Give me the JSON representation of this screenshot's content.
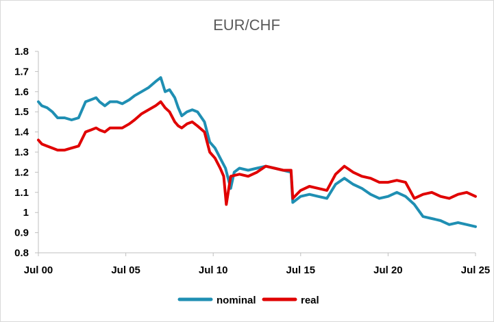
{
  "chart_data": {
    "type": "line",
    "title": "EUR/CHF",
    "xlabel": "",
    "ylabel": "",
    "ylim": [
      0.8,
      1.8
    ],
    "yticks": [
      0.8,
      0.9,
      1,
      1.1,
      1.2,
      1.3,
      1.4,
      1.5,
      1.6,
      1.7,
      1.8
    ],
    "ytick_labels": [
      "0.8",
      "0.9",
      "1",
      "1.1",
      "1.2",
      "1.3",
      "1.4",
      "1.5",
      "1.6",
      "1.7",
      "1.8"
    ],
    "xlim": [
      2000.5,
      2025.5
    ],
    "xticks": [
      2000.5,
      2005.5,
      2010.5,
      2015.5,
      2020.5,
      2025.5
    ],
    "xtick_labels": [
      "Jul 00",
      "Jul 05",
      "Jul 10",
      "Jul 15",
      "Jul 20",
      "Jul 25"
    ],
    "grid": false,
    "legend": "bottom",
    "series": [
      {
        "name": "nominal",
        "color": "#1f8fb3",
        "x": [
          2000.5,
          2000.7,
          2001.0,
          2001.3,
          2001.6,
          2002.0,
          2002.4,
          2002.8,
          2003.2,
          2003.5,
          2003.8,
          2004.0,
          2004.3,
          2004.6,
          2005.0,
          2005.3,
          2005.7,
          2006.0,
          2006.4,
          2006.8,
          2007.2,
          2007.5,
          2007.75,
          2008.0,
          2008.3,
          2008.5,
          2008.7,
          2009.0,
          2009.3,
          2009.6,
          2010.0,
          2010.3,
          2010.6,
          2010.9,
          2011.2,
          2011.5,
          2011.7,
          2012.0,
          2012.5,
          2013.0,
          2013.5,
          2014.0,
          2014.5,
          2014.95,
          2015.05,
          2015.5,
          2016.0,
          2016.5,
          2017.0,
          2017.5,
          2018.0,
          2018.5,
          2019.0,
          2019.5,
          2020.0,
          2020.5,
          2021.0,
          2021.5,
          2022.0,
          2022.5,
          2023.0,
          2023.5,
          2024.0,
          2024.5,
          2025.0,
          2025.5
        ],
        "values": [
          1.55,
          1.53,
          1.52,
          1.5,
          1.47,
          1.47,
          1.46,
          1.47,
          1.55,
          1.56,
          1.57,
          1.55,
          1.53,
          1.55,
          1.55,
          1.54,
          1.56,
          1.58,
          1.6,
          1.62,
          1.65,
          1.67,
          1.6,
          1.61,
          1.57,
          1.52,
          1.48,
          1.5,
          1.51,
          1.5,
          1.45,
          1.35,
          1.32,
          1.27,
          1.22,
          1.12,
          1.2,
          1.22,
          1.21,
          1.22,
          1.23,
          1.22,
          1.21,
          1.2,
          1.05,
          1.08,
          1.09,
          1.08,
          1.07,
          1.14,
          1.17,
          1.14,
          1.12,
          1.09,
          1.07,
          1.08,
          1.1,
          1.08,
          1.04,
          0.98,
          0.97,
          0.96,
          0.94,
          0.95,
          0.94,
          0.93
        ]
      },
      {
        "name": "real",
        "color": "#e00000",
        "x": [
          2000.5,
          2000.7,
          2001.0,
          2001.3,
          2001.6,
          2002.0,
          2002.4,
          2002.8,
          2003.2,
          2003.5,
          2003.8,
          2004.0,
          2004.3,
          2004.6,
          2005.0,
          2005.3,
          2005.7,
          2006.0,
          2006.4,
          2006.8,
          2007.2,
          2007.5,
          2007.75,
          2008.0,
          2008.3,
          2008.5,
          2008.7,
          2009.0,
          2009.3,
          2009.6,
          2010.0,
          2010.3,
          2010.6,
          2010.9,
          2011.1,
          2011.25,
          2011.5,
          2012.0,
          2012.5,
          2013.0,
          2013.5,
          2014.0,
          2014.5,
          2014.95,
          2015.05,
          2015.5,
          2016.0,
          2016.5,
          2017.0,
          2017.5,
          2018.0,
          2018.5,
          2019.0,
          2019.5,
          2020.0,
          2020.5,
          2021.0,
          2021.5,
          2022.0,
          2022.5,
          2023.0,
          2023.5,
          2024.0,
          2024.5,
          2025.0,
          2025.5
        ],
        "values": [
          1.36,
          1.34,
          1.33,
          1.32,
          1.31,
          1.31,
          1.32,
          1.33,
          1.4,
          1.41,
          1.42,
          1.41,
          1.4,
          1.42,
          1.42,
          1.42,
          1.44,
          1.46,
          1.49,
          1.51,
          1.53,
          1.55,
          1.52,
          1.5,
          1.45,
          1.43,
          1.42,
          1.44,
          1.45,
          1.43,
          1.4,
          1.3,
          1.27,
          1.22,
          1.18,
          1.04,
          1.18,
          1.19,
          1.18,
          1.2,
          1.23,
          1.22,
          1.21,
          1.21,
          1.07,
          1.11,
          1.13,
          1.12,
          1.11,
          1.19,
          1.23,
          1.2,
          1.18,
          1.17,
          1.15,
          1.15,
          1.16,
          1.15,
          1.07,
          1.09,
          1.1,
          1.08,
          1.07,
          1.09,
          1.1,
          1.08
        ]
      }
    ]
  }
}
